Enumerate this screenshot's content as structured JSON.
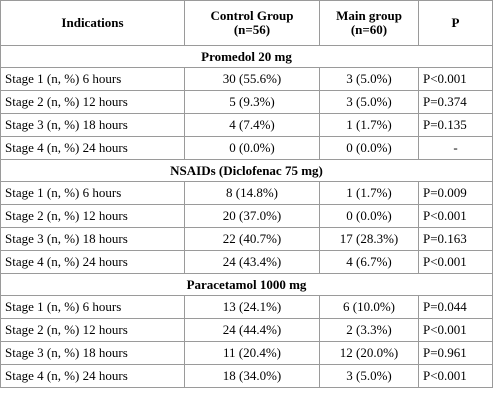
{
  "headers": {
    "indications": "Indications",
    "control_group": "Control Group",
    "control_n": "(n=56)",
    "main_group": "Main group",
    "main_n": "(n=60)",
    "p": "P"
  },
  "sections": [
    {
      "title": "Promedol 20 mg",
      "rows": [
        {
          "indication": "Stage 1 (n, %) 6 hours",
          "control": "30 (55.6%)",
          "main": "3 (5.0%)",
          "p": "P<0.001"
        },
        {
          "indication": "Stage 2 (n, %) 12 hours",
          "control": "5 (9.3%)",
          "main": "3 (5.0%)",
          "p": "P=0.374"
        },
        {
          "indication": "Stage 3 (n, %) 18 hours",
          "control": "4 (7.4%)",
          "main": "1 (1.7%)",
          "p": "P=0.135"
        },
        {
          "indication": "Stage 4 (n, %) 24 hours",
          "control": "0 (0.0%)",
          "main": "0 (0.0%)",
          "p": "-"
        }
      ]
    },
    {
      "title": "NSAIDs (Diclofenac 75 mg)",
      "rows": [
        {
          "indication": "Stage 1 (n, %) 6 hours",
          "control": "8 (14.8%)",
          "main": "1 (1.7%)",
          "p": "P=0.009"
        },
        {
          "indication": "Stage 2 (n, %) 12 hours",
          "control": "20 (37.0%)",
          "main": "0 (0.0%)",
          "p": "P<0.001"
        },
        {
          "indication": "Stage 3 (n, %) 18 hours",
          "control": "22 (40.7%)",
          "main": "17 (28.3%)",
          "p": "P=0.163"
        },
        {
          "indication": "Stage 4 (n, %) 24 hours",
          "control": "24 (43.4%)",
          "main": "4 (6.7%)",
          "p": "P<0.001"
        }
      ]
    },
    {
      "title": "Paracetamol 1000 mg",
      "rows": [
        {
          "indication": "Stage 1 (n, %) 6 hours",
          "control": "13 (24.1%)",
          "main": "6 (10.0%)",
          "p": "P=0.044"
        },
        {
          "indication": "Stage 2 (n, %) 12 hours",
          "control": "24 (44.4%)",
          "main": "2 (3.3%)",
          "p": "P<0.001"
        },
        {
          "indication": "Stage 3 (n, %) 18 hours",
          "control": "11 (20.4%)",
          "main": "12 (20.0%)",
          "p": "P=0.961"
        },
        {
          "indication": "Stage 4 (n, %) 24 hours",
          "control": "18 (34.0%)",
          "main": "3 (5.0%)",
          "p": "P<0.001"
        }
      ]
    }
  ]
}
